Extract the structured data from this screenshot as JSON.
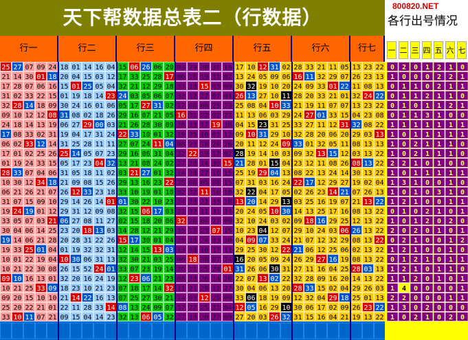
{
  "title": "天下帮数据总表二（行数据）",
  "site": "800820.NET",
  "side_title": "各行出号情况",
  "groups": [
    "行一",
    "行二",
    "行三",
    "行四",
    "行五",
    "行六",
    "行七"
  ],
  "count_headers": [
    "一",
    "二",
    "三",
    "四",
    "五",
    "六",
    "七"
  ],
  "colors": {
    "title_bg": "#808000",
    "header_bg": "#ff6600",
    "group_bgs": [
      "#ff9999",
      "#99ccff",
      "#00cc00",
      "#800080",
      "#ffcc00",
      "#ffcc00",
      "#ffcc00"
    ],
    "hit_red": "#dd0000",
    "hit_blue": "#0055cc",
    "hit_black": "#000000",
    "footer_blue": "#0066cc",
    "counts_bg": "#800080",
    "counts_alt": "#ffff00"
  },
  "rows": [
    [
      [
        "25",
        "27",
        "07",
        "09",
        "24"
      ],
      [
        "18",
        "01",
        "14",
        "16",
        "04"
      ],
      [
        "15",
        "06",
        "26",
        "06",
        "20"
      ],
      [
        "03",
        "29",
        "30",
        "30",
        "18"
      ],
      [
        "17",
        "10",
        "12",
        "31",
        "02"
      ],
      [
        "28",
        "33",
        "21",
        "11",
        "05"
      ],
      [
        "13",
        "23",
        "22"
      ]
    ],
    [
      [
        "21",
        "14",
        "30",
        "01",
        "18"
      ],
      [
        "20",
        "04",
        "15",
        "03",
        "12"
      ],
      [
        "17",
        "33",
        "25",
        "28",
        "17"
      ],
      [
        "06",
        "16",
        "19",
        "31",
        "02"
      ],
      [
        "13",
        "24",
        "05",
        "09",
        "06"
      ],
      [
        "16",
        "11",
        "32",
        "29",
        "07"
      ],
      [
        "26",
        "23",
        "13"
      ]
    ],
    [
      [
        "17",
        "28",
        "07",
        "06",
        "16"
      ],
      [
        "15",
        "01",
        "25",
        "05",
        "04"
      ],
      [
        "32",
        "21",
        "12",
        "29",
        "18"
      ],
      [
        "33",
        "10",
        "15",
        "03",
        "09"
      ],
      [
        "30",
        "32",
        "19",
        "10",
        "20"
      ],
      [
        "24",
        "09",
        "33",
        "01",
        "22"
      ],
      [
        "11",
        "08",
        "13"
      ]
    ],
    [
      [
        "31",
        "02",
        "33",
        "22",
        "15"
      ],
      [
        "01",
        "19",
        "18",
        "14",
        "23"
      ],
      [
        "24",
        "03",
        "05",
        "06",
        "07"
      ],
      [
        "32",
        "12",
        "27",
        "07",
        "01"
      ],
      [
        "26",
        "13",
        "27",
        "10",
        "11"
      ],
      [
        "28",
        "20",
        "33",
        "21",
        "01"
      ],
      [
        "32",
        "24",
        "22"
      ]
    ],
    [
      [
        "32",
        "28",
        "14",
        "18",
        "09"
      ],
      [
        "30",
        "24",
        "16",
        "01",
        "06"
      ],
      [
        "05",
        "17",
        "27",
        "31",
        "02"
      ],
      [
        "17",
        "06",
        "08",
        "25",
        "23"
      ],
      [
        "25",
        "08",
        "04",
        "10",
        "33"
      ],
      [
        "21",
        "19",
        "11",
        "07",
        "07"
      ],
      [
        "13",
        "23",
        "22"
      ]
    ],
    [
      [
        "09",
        "10",
        "12",
        "12",
        "08"
      ],
      [
        "31",
        "08",
        "02",
        "18",
        "26"
      ],
      [
        "29",
        "16",
        "07",
        "21",
        "05"
      ],
      [
        "16",
        "31",
        "22",
        "02",
        "27"
      ],
      [
        "11",
        "13",
        "06",
        "03",
        "29"
      ],
      [
        "24",
        "27",
        "01",
        "33",
        "15"
      ],
      [
        "04",
        "23",
        "08"
      ]
    ],
    [
      [
        "24",
        "18",
        "14",
        "13",
        "19"
      ],
      [
        "06",
        "27",
        "29",
        "00",
        "03"
      ],
      [
        "21",
        "26",
        "28",
        "30",
        "09"
      ],
      [
        "28",
        "13",
        "17",
        "19",
        "28"
      ],
      [
        "04",
        "15",
        "23",
        "31",
        "25"
      ],
      [
        "33",
        "27",
        "11",
        "12",
        "31"
      ],
      [
        "32",
        "08",
        "22"
      ]
    ],
    [
      [
        "17",
        "08",
        "33",
        "02",
        "31"
      ],
      [
        "19",
        "04",
        "17",
        "31",
        "24"
      ],
      [
        "22",
        "33",
        "10",
        "01",
        "32"
      ],
      [
        "19",
        "25",
        "10",
        "03",
        "12"
      ],
      [
        "09",
        "10",
        "31",
        "29",
        "10"
      ],
      [
        "32",
        "28",
        "20",
        "06",
        "20"
      ],
      [
        "29",
        "03",
        "13"
      ]
    ],
    [
      [
        "06",
        "02",
        "33",
        "12",
        "14"
      ],
      [
        "31",
        "25",
        "28",
        "11",
        "11"
      ],
      [
        "27",
        "07",
        "24",
        "11",
        "04"
      ],
      [
        "08",
        "23",
        "18",
        "20",
        "26"
      ],
      [
        "20",
        "11",
        "12",
        "24",
        "09"
      ],
      [
        "33",
        "01",
        "32",
        "05",
        "11"
      ],
      [
        "08",
        "13",
        "13"
      ]
    ],
    [
      [
        "17",
        "01",
        "02",
        "25",
        "26"
      ],
      [
        "25",
        "14",
        "05",
        "07",
        "23"
      ],
      [
        "29",
        "16",
        "06",
        "31",
        "04"
      ],
      [
        "32",
        "22",
        "19",
        "17",
        "02"
      ],
      [
        "28",
        "19",
        "14",
        "10",
        "03"
      ],
      [
        "09",
        "32",
        "13",
        "15",
        "12"
      ],
      [
        "03",
        "13",
        "22"
      ]
    ],
    [
      [
        "01",
        "19",
        "24",
        "33",
        "15"
      ],
      [
        "05",
        "17",
        "23",
        "04",
        "32"
      ],
      [
        "13",
        "21",
        "08",
        "24",
        "02"
      ],
      [
        "27",
        "20",
        "14",
        "30",
        "15"
      ],
      [
        "21",
        "28",
        "01",
        "15",
        "04"
      ],
      [
        "23",
        "12",
        "11",
        "08",
        "26"
      ],
      [
        "08",
        "13",
        "22"
      ]
    ],
    [
      [
        "28",
        "33",
        "07",
        "04",
        "06"
      ],
      [
        "31",
        "05",
        "18",
        "11",
        "02"
      ],
      [
        "03",
        "21",
        "27",
        "01",
        "32"
      ],
      [
        "14",
        "28",
        "27",
        "16",
        "15"
      ],
      [
        "25",
        "19",
        "29",
        "04",
        "13"
      ],
      [
        "08",
        "22",
        "13",
        "24",
        "14"
      ],
      [
        "30",
        "13",
        "22"
      ]
    ],
    [
      [
        "10",
        "30",
        "12",
        "34",
        "18"
      ],
      [
        "21",
        "09",
        "08",
        "15",
        "26"
      ],
      [
        "29",
        "13",
        "16",
        "23",
        "22"
      ],
      [
        "25",
        "06",
        "05",
        "08",
        "15"
      ],
      [
        "07",
        "31",
        "03",
        "16",
        "24"
      ],
      [
        "22",
        "17",
        "12",
        "29",
        "27"
      ],
      [
        "19",
        "02",
        "04"
      ]
    ],
    [
      [
        "06",
        "21",
        "26",
        "21",
        "07"
      ],
      [
        "26",
        "12",
        "33",
        "23",
        "18"
      ],
      [
        "33",
        "10",
        "19",
        "01",
        "10"
      ],
      [
        "02",
        "32",
        "11",
        "16",
        "10"
      ],
      [
        "32",
        "22",
        "04",
        "17",
        "05"
      ],
      [
        "02",
        "26",
        "23",
        "14",
        "21"
      ],
      [
        "07",
        "26",
        "13"
      ]
    ],
    [
      [
        "31",
        "07",
        "15",
        "09",
        "10"
      ],
      [
        "29",
        "14",
        "26",
        "14",
        "01"
      ],
      [
        "01",
        "30",
        "22",
        "10",
        "23"
      ],
      [
        "24",
        "20",
        "21",
        "33",
        "28"
      ],
      [
        "13",
        "20",
        "14",
        "29",
        "13"
      ],
      [
        "03",
        "25",
        "16",
        "19",
        "07"
      ],
      [
        "21",
        "13",
        "22"
      ]
    ],
    [
      [
        "19",
        "24",
        "19",
        "01",
        "12"
      ],
      [
        "29",
        "31",
        "12",
        "09",
        "08"
      ],
      [
        "32",
        "15",
        "06",
        "17",
        "03"
      ],
      [
        "21",
        "32",
        "11",
        "31",
        "24"
      ],
      [
        "20",
        "24",
        "05",
        "10",
        "30"
      ],
      [
        "14",
        "13",
        "25",
        "17",
        "16"
      ],
      [
        "08",
        "13",
        "22"
      ]
    ],
    [
      [
        "33",
        "05",
        "07",
        "03",
        "21"
      ],
      [
        "06",
        "27",
        "08",
        "11",
        "27"
      ],
      [
        "02",
        "15",
        "18",
        "20",
        "06"
      ],
      [
        "32",
        "26",
        "04",
        "27",
        "09"
      ],
      [
        "32",
        "10",
        "24",
        "03",
        "02"
      ],
      [
        "09",
        "18",
        "16",
        "29",
        "25"
      ],
      [
        "12",
        "13",
        "22"
      ]
    ],
    [
      [
        "30",
        "04",
        "06",
        "14",
        "25"
      ],
      [
        "23",
        "20",
        "18",
        "13",
        "03"
      ],
      [
        "14",
        "28",
        "12",
        "21",
        "29"
      ],
      [
        "15",
        "13",
        "23",
        "07",
        "15"
      ],
      [
        "10",
        "23",
        "04",
        "12",
        "07"
      ],
      [
        "29",
        "10",
        "24",
        "03",
        "06"
      ],
      [
        "26",
        "13",
        "22"
      ]
    ],
    [
      [
        "19",
        "14",
        "06",
        "21",
        "28"
      ],
      [
        "20",
        "28",
        "31",
        "22",
        "26"
      ],
      [
        "15",
        "17",
        "30",
        "01",
        "04"
      ],
      [
        "25",
        "16",
        "24",
        "03",
        "30"
      ],
      [
        "04",
        "09",
        "07",
        "33",
        "24"
      ],
      [
        "21",
        "07",
        "12",
        "32",
        "29"
      ],
      [
        "08",
        "13",
        "22"
      ]
    ],
    [
      [
        "19",
        "33",
        "25",
        "01",
        "04"
      ],
      [
        "01",
        "19",
        "32",
        "32",
        "31"
      ],
      [
        "12",
        "14",
        "15",
        "13",
        "03"
      ],
      [
        "13",
        "08",
        "10",
        "17",
        "11"
      ],
      [
        "29",
        "25",
        "30",
        "12",
        "22"
      ],
      [
        "21",
        "06",
        "12",
        "25",
        "06"
      ],
      [
        "02",
        "13",
        "22"
      ]
    ],
    [
      [
        "10",
        "01",
        "22",
        "19",
        "04"
      ],
      [
        "10",
        "30",
        "06",
        "31",
        "13"
      ],
      [
        "32",
        "30",
        "21",
        "03",
        "25"
      ],
      [
        "06",
        "18",
        "30",
        "07",
        "24"
      ],
      [
        "16",
        "20",
        "05",
        "09",
        "24"
      ],
      [
        "26",
        "29",
        "27",
        "16",
        "19"
      ],
      [
        "08",
        "13",
        "22"
      ]
    ],
    [
      [
        "10",
        "21",
        "22",
        "30",
        "08"
      ],
      [
        "26",
        "15",
        "52",
        "24",
        "01"
      ],
      [
        "33",
        "07",
        "23",
        "19",
        "14"
      ],
      [
        "26",
        "11",
        "25",
        "24",
        "01"
      ],
      [
        "31",
        "26",
        "06",
        "30",
        "31"
      ],
      [
        "27",
        "11",
        "16",
        "04",
        "25"
      ],
      [
        "28",
        "03",
        "13"
      ]
    ],
    [
      [
        "09",
        "10",
        "16",
        "13",
        "01"
      ],
      [
        "32",
        "20",
        "16",
        "24",
        "19"
      ],
      [
        "12",
        "23",
        "06",
        "21",
        "23"
      ],
      [
        "08",
        "20",
        "26",
        "14",
        "20"
      ],
      [
        "22",
        "07",
        "13",
        "02",
        "22"
      ],
      [
        "32",
        "28",
        "09",
        "16",
        "20"
      ],
      [
        "14",
        "13",
        "22"
      ]
    ],
    [
      [
        "10",
        "21",
        "25",
        "33",
        "09"
      ],
      [
        "18",
        "23",
        "10",
        "21",
        "23"
      ],
      [
        "07",
        "18",
        "17",
        "14",
        "32"
      ],
      [
        "11",
        "21",
        "29",
        "12",
        "27"
      ],
      [
        "30",
        "04",
        "06",
        "13",
        "20"
      ],
      [
        "28",
        "33",
        "15",
        "02",
        "04"
      ],
      [
        "29",
        "26",
        "03"
      ]
    ],
    [
      [
        "09",
        "20",
        "15",
        "10",
        "10"
      ],
      [
        "21",
        "14",
        "22",
        "16",
        "13"
      ],
      [
        "07",
        "25",
        "27",
        "30",
        "21"
      ],
      [
        "14",
        "03",
        "12",
        "20",
        "09"
      ],
      [
        "33",
        "06",
        "18",
        "19",
        "09"
      ],
      [
        "12",
        "32",
        "04",
        "29",
        "18"
      ],
      [
        "25",
        "01",
        "13"
      ]
    ],
    [
      [
        "25",
        "20",
        "22",
        "21",
        "01"
      ],
      [
        "22",
        "11",
        "28",
        "33",
        "14"
      ],
      [
        "08",
        "13",
        "24",
        "09",
        "07"
      ],
      [
        "17",
        "22",
        "25",
        "31",
        "04"
      ],
      [
        "12",
        "05",
        "16",
        "29",
        "10"
      ],
      [
        "30",
        "06",
        "17",
        "02",
        "09"
      ],
      [
        "26",
        "23",
        "22"
      ]
    ],
    [
      [
        "33",
        "10",
        "11",
        "07",
        "21"
      ],
      [
        "09",
        "15",
        "04",
        "14",
        "23"
      ],
      [
        "32",
        "13",
        "06",
        "05",
        "32"
      ],
      [
        "27",
        "10",
        "20",
        "27",
        "09"
      ],
      [
        "27",
        "20",
        "03",
        "26",
        "32"
      ],
      [
        "31",
        "15",
        "16",
        "04",
        "21"
      ],
      [
        "19",
        "13",
        "22"
      ]
    ]
  ],
  "counts": [
    [
      "0",
      "2",
      "0",
      "1",
      "2",
      "1",
      "0"
    ],
    [
      "1",
      "0",
      "0",
      "0",
      "2",
      "2",
      "1"
    ],
    [
      "0",
      "1",
      "1",
      "0",
      "2",
      "1",
      "1"
    ],
    [
      "0",
      "1",
      "1",
      "2",
      "1",
      "1",
      "0"
    ],
    [
      "0",
      "1",
      "0",
      "1",
      "1",
      "2",
      "1"
    ],
    [
      "0",
      "1",
      "1",
      "3",
      "1",
      "0",
      "0"
    ],
    [
      "1",
      "1",
      "1",
      "1",
      "1",
      "1",
      "1"
    ],
    [
      "1",
      "0",
      "1",
      "1",
      "1",
      "1",
      "1"
    ],
    [
      "1",
      "0",
      "2",
      "1",
      "1",
      "1",
      "0"
    ],
    [
      "1",
      "0",
      "2",
      "1",
      "1",
      "1",
      "0"
    ],
    [
      "2",
      "2",
      "1",
      "0",
      "1",
      "0",
      "0"
    ],
    [
      "1",
      "0",
      "1",
      "1",
      "1",
      "1",
      "1"
    ],
    [
      "1",
      "3",
      "1",
      "0",
      "0",
      "1",
      "0"
    ],
    [
      "1",
      "0",
      "1",
      "0",
      "3",
      "1",
      "0"
    ],
    [
      "1",
      "2",
      "1",
      "0",
      "0",
      "1",
      "1"
    ],
    [
      "0",
      "1",
      "0",
      "2",
      "1",
      "0",
      "1"
    ],
    [
      "1",
      "0",
      "1",
      "2",
      "0",
      "2",
      "0"
    ],
    [
      "2",
      "0",
      "2",
      "0",
      "1",
      "0",
      "1"
    ],
    [
      "0",
      "2",
      "1",
      "0",
      "0",
      "1",
      "2"
    ],
    [
      "1",
      "2",
      "1",
      "0",
      "0",
      "1",
      "0"
    ],
    [
      "0",
      "1",
      "2",
      "1",
      "0",
      "1",
      "1"
    ],
    [
      "1",
      "2",
      "1",
      "0",
      "1",
      "1",
      "0"
    ],
    [
      "1",
      "1",
      "2",
      "0",
      "1",
      "0",
      "1"
    ],
    [
      "1",
      "4",
      "0",
      "0",
      "0",
      "0",
      "1"
    ],
    [
      "2",
      "2",
      "0",
      "0",
      "0",
      "1",
      "1"
    ],
    [
      "1",
      "3",
      "0",
      "2",
      "0",
      "0",
      "0"
    ],
    [
      "1",
      "0",
      "2",
      "1",
      "0",
      "2",
      "0"
    ]
  ]
}
